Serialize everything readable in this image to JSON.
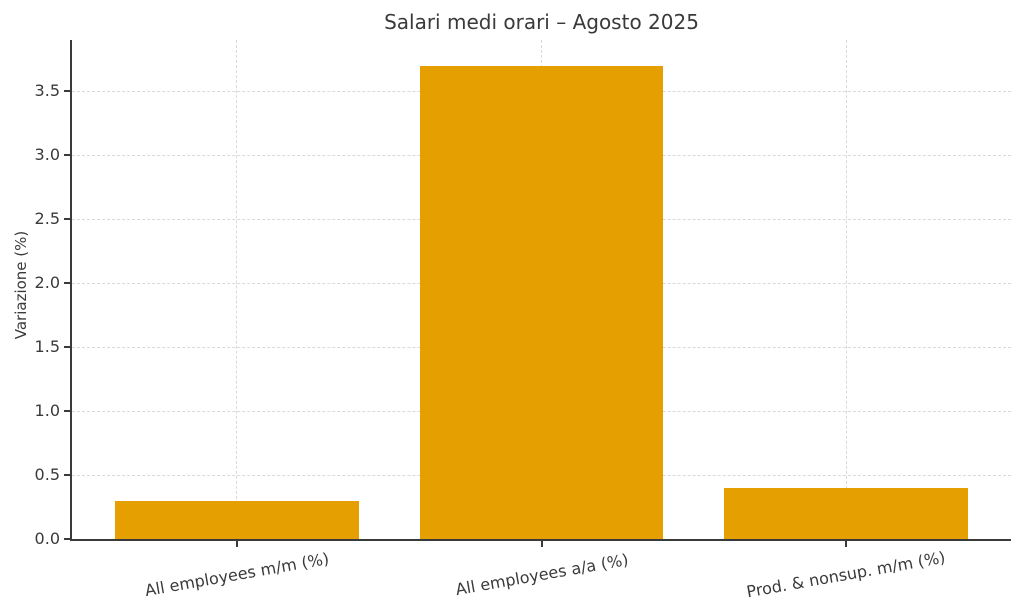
{
  "chart_data": {
    "type": "bar",
    "title": "Salari medi orari – Agosto 2025",
    "xlabel": "",
    "ylabel": "Variazione (%)",
    "categories": [
      "All employees m/m (%)",
      "All employees a/a (%)",
      "Prod. & nonsup. m/m (%)"
    ],
    "values": [
      0.3,
      3.7,
      0.4
    ],
    "ylim": [
      0,
      3.9
    ],
    "yticks": [
      0.0,
      0.5,
      1.0,
      1.5,
      2.0,
      2.5,
      3.0,
      3.5
    ],
    "ytick_labels": [
      "0.0",
      "0.5",
      "1.0",
      "1.5",
      "2.0",
      "2.5",
      "3.0",
      "3.5"
    ],
    "grid": "dashed, light gray, horizontal at yticks and vertical at category centers",
    "legend": "none",
    "bar_color": "#E69F00",
    "grid_color": "#d9d9d9",
    "text_color": "#3a3a3a",
    "spine_color": "#3a3a3a",
    "background_color": "#ffffff",
    "xtick_label_rotation_deg": 10
  }
}
